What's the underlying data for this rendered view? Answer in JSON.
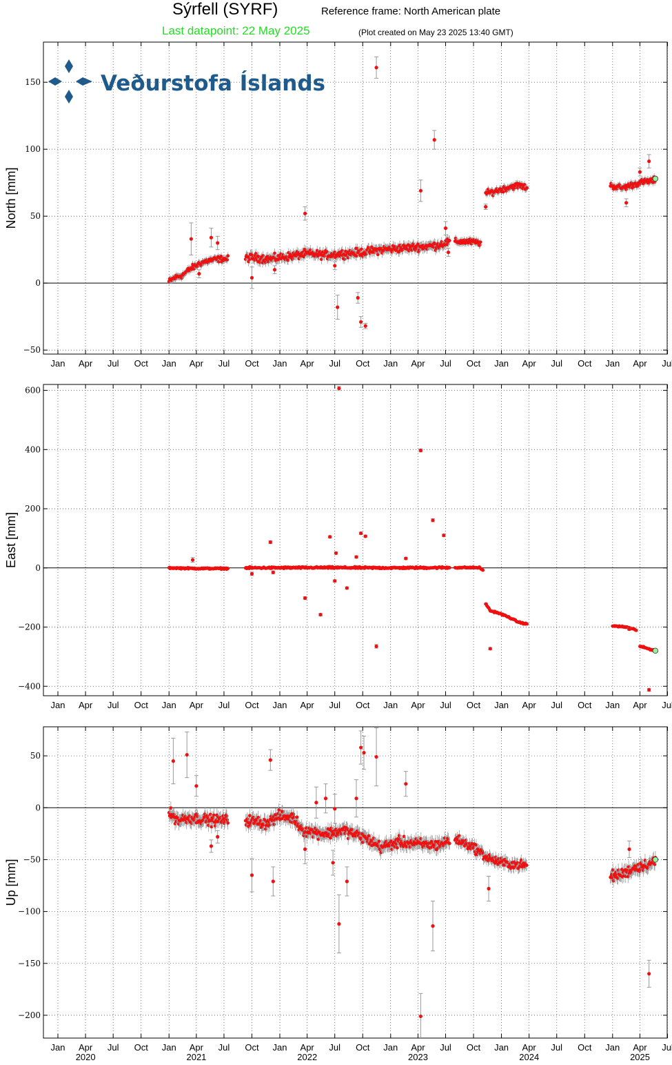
{
  "header": {
    "title": "Sýrfell (SYRF)",
    "reference_frame": "Reference frame: North American plate",
    "last_datapoint": "Last datapoint: 22 May 2025",
    "plot_created": "(Plot created on May 23 2025 13:40 GMT)"
  },
  "logo": {
    "text": "Veðurstofa Íslands",
    "color": "#1f5a8c"
  },
  "colors": {
    "point": "#ee1111",
    "last_point": "#99ee99",
    "errorbar": "#999999",
    "grid": "#555555"
  },
  "x_axis": {
    "month_labels": [
      "Jan",
      "Apr",
      "Jul",
      "Oct",
      "Jan",
      "Apr",
      "Jul",
      "Oct",
      "Jan",
      "Apr",
      "Jul",
      "Oct",
      "Jan",
      "Apr",
      "Jul",
      "Oct",
      "Jan",
      "Apr",
      "Jul",
      "Oct",
      "Jan",
      "Apr",
      "Jul"
    ],
    "year_labels": [
      "2020",
      "2021",
      "2022",
      "2023",
      "2024",
      "2025"
    ]
  },
  "chart_data": [
    {
      "type": "scatter",
      "ylabel": "North [mm]",
      "ylim": [
        -53,
        180
      ],
      "yticks": [
        -50,
        0,
        50,
        100,
        150
      ],
      "grid": true,
      "last_point": {
        "x": "2025-05-22",
        "y": 78
      },
      "segments": [
        {
          "x": [
            "2021-01-01",
            "2021-01-20",
            "2021-02-15",
            "2021-03-15",
            "2021-04-15",
            "2021-05-15",
            "2021-06-15",
            "2021-07-15"
          ],
          "y": [
            1,
            4,
            6,
            11,
            15,
            17,
            18,
            18
          ],
          "noise": 3
        },
        {
          "x": [
            "2021-09-10",
            "2021-10-15",
            "2021-12-01",
            "2022-02-01",
            "2022-04-01",
            "2022-06-01",
            "2022-08-01",
            "2022-10-01",
            "2022-12-01",
            "2023-02-01",
            "2023-04-01",
            "2023-06-01",
            "2023-07-15"
          ],
          "y": [
            19,
            19,
            18,
            20,
            22,
            21,
            22,
            23,
            25,
            26,
            27,
            28,
            31
          ],
          "noise": 4
        },
        {
          "x": [
            "2023-08-01",
            "2023-09-15",
            "2023-10-25"
          ],
          "y": [
            31,
            31,
            30
          ],
          "noise": 3
        },
        {
          "x": [
            "2023-11-10",
            "2023-12-01",
            "2024-01-01",
            "2024-02-01",
            "2024-03-01",
            "2024-03-25"
          ],
          "y": [
            67,
            68,
            70,
            72,
            73,
            71
          ],
          "noise": 3
        },
        {
          "x": [
            "2024-12-25",
            "2025-02-01",
            "2025-03-01",
            "2025-04-01",
            "2025-05-22"
          ],
          "y": [
            73,
            71,
            73,
            75,
            77
          ],
          "noise": 3
        }
      ],
      "outliers": [
        {
          "x": "2021-03-15",
          "y": 33,
          "err": 12
        },
        {
          "x": "2021-04-10",
          "y": 7,
          "err": 3
        },
        {
          "x": "2021-05-20",
          "y": 34,
          "err": 7
        },
        {
          "x": "2021-06-10",
          "y": 30,
          "err": 5
        },
        {
          "x": "2021-10-01",
          "y": 4,
          "err": 8
        },
        {
          "x": "2021-12-15",
          "y": 10,
          "err": 3
        },
        {
          "x": "2022-03-25",
          "y": 52,
          "err": 5
        },
        {
          "x": "2022-07-01",
          "y": 13,
          "err": 3
        },
        {
          "x": "2022-07-10",
          "y": -18,
          "err": 9
        },
        {
          "x": "2022-09-15",
          "y": -11,
          "err": 4
        },
        {
          "x": "2022-09-25",
          "y": -29,
          "err": 4
        },
        {
          "x": "2022-10-10",
          "y": -32,
          "err": 2
        },
        {
          "x": "2022-11-15",
          "y": 161,
          "err": 8
        },
        {
          "x": "2023-04-10",
          "y": 69,
          "err": 8
        },
        {
          "x": "2023-05-25",
          "y": 107,
          "err": 7
        },
        {
          "x": "2023-07-01",
          "y": 41,
          "err": 5
        },
        {
          "x": "2023-07-10",
          "y": 23,
          "err": 3
        },
        {
          "x": "2023-11-10",
          "y": 57,
          "err": 2
        },
        {
          "x": "2025-02-15",
          "y": 60,
          "err": 3
        },
        {
          "x": "2025-04-01",
          "y": 83,
          "err": 3
        },
        {
          "x": "2025-05-01",
          "y": 91,
          "err": 5
        }
      ]
    },
    {
      "type": "scatter",
      "ylabel": "East [mm]",
      "ylim": [
        -432,
        620
      ],
      "yticks": [
        -400,
        -200,
        0,
        200,
        400,
        600
      ],
      "grid": true,
      "last_point": {
        "x": "2025-05-22",
        "y": -280
      },
      "segments": [
        {
          "x": [
            "2021-01-01",
            "2021-04-01",
            "2021-07-15"
          ],
          "y": [
            0,
            -2,
            -2
          ],
          "noise": 3
        },
        {
          "x": [
            "2021-09-10",
            "2022-06-01",
            "2023-01-01",
            "2023-07-15"
          ],
          "y": [
            0,
            1,
            0,
            1
          ],
          "noise": 4
        },
        {
          "x": [
            "2023-08-01",
            "2023-10-20",
            "2023-11-01"
          ],
          "y": [
            1,
            1,
            -8
          ],
          "noise": 3
        },
        {
          "x": [
            "2023-11-10",
            "2023-11-25",
            "2023-12-15",
            "2024-01-10",
            "2024-02-01",
            "2024-02-25",
            "2024-03-25"
          ],
          "y": [
            -120,
            -145,
            -150,
            -160,
            -170,
            -183,
            -190
          ],
          "noise": 3
        },
        {
          "x": [
            "2025-01-01",
            "2025-02-15",
            "2025-03-20"
          ],
          "y": [
            -196,
            -200,
            -210
          ],
          "noise": 3
        },
        {
          "x": [
            "2025-04-01",
            "2025-05-22"
          ],
          "y": [
            -265,
            -280
          ],
          "noise": 3
        }
      ],
      "outliers": [
        {
          "x": "2021-03-20",
          "y": 27,
          "err": 8
        },
        {
          "x": "2021-10-01",
          "y": -20,
          "err": 6
        },
        {
          "x": "2021-12-01",
          "y": 87,
          "err": 5
        },
        {
          "x": "2021-12-10",
          "y": -15,
          "err": 5
        },
        {
          "x": "2022-03-25",
          "y": -102,
          "err": 5
        },
        {
          "x": "2022-05-15",
          "y": -158,
          "err": 4
        },
        {
          "x": "2022-06-15",
          "y": 105,
          "err": 4
        },
        {
          "x": "2022-07-01",
          "y": -44,
          "err": 4
        },
        {
          "x": "2022-07-05",
          "y": 50,
          "err": 4
        },
        {
          "x": "2022-07-15",
          "y": 607,
          "err": 6
        },
        {
          "x": "2022-08-10",
          "y": -68,
          "err": 4
        },
        {
          "x": "2022-09-10",
          "y": 37,
          "err": 4
        },
        {
          "x": "2022-09-25",
          "y": 117,
          "err": 4
        },
        {
          "x": "2022-10-10",
          "y": 107,
          "err": 4
        },
        {
          "x": "2022-11-15",
          "y": -265,
          "err": 6
        },
        {
          "x": "2023-02-20",
          "y": 32,
          "err": 4
        },
        {
          "x": "2023-04-10",
          "y": 397,
          "err": 5
        },
        {
          "x": "2023-05-20",
          "y": 161,
          "err": 5
        },
        {
          "x": "2023-06-25",
          "y": 110,
          "err": 4
        },
        {
          "x": "2023-11-25",
          "y": -273,
          "err": 4
        },
        {
          "x": "2025-02-25",
          "y": -207,
          "err": 4
        },
        {
          "x": "2025-05-01",
          "y": -412,
          "err": 5
        }
      ]
    },
    {
      "type": "scatter",
      "ylabel": "Up [mm]",
      "ylim": [
        -222,
        78
      ],
      "yticks": [
        -200,
        -150,
        -100,
        -50,
        0,
        50
      ],
      "grid": true,
      "last_point": {
        "x": "2025-05-22",
        "y": -50
      },
      "segments": [
        {
          "x": [
            "2021-01-01",
            "2021-02-01",
            "2021-03-01",
            "2021-04-01",
            "2021-05-15",
            "2021-07-15"
          ],
          "y": [
            -5,
            -12,
            -10,
            -10,
            -12,
            -12
          ],
          "noise": 7
        },
        {
          "x": [
            "2021-09-10",
            "2021-11-15",
            "2022-01-01",
            "2022-02-15",
            "2022-03-20",
            "2022-06-01",
            "2022-08-01",
            "2022-10-01",
            "2022-12-01",
            "2023-02-01",
            "2023-04-01",
            "2023-06-01",
            "2023-07-15"
          ],
          "y": [
            -12,
            -15,
            -8,
            -10,
            -22,
            -25,
            -22,
            -28,
            -38,
            -33,
            -35,
            -36,
            -32
          ],
          "noise": 7
        },
        {
          "x": [
            "2023-08-01",
            "2023-10-01",
            "2023-11-15",
            "2024-01-01",
            "2024-03-25"
          ],
          "y": [
            -30,
            -38,
            -48,
            -53,
            -56
          ],
          "noise": 6
        },
        {
          "x": [
            "2024-12-25",
            "2025-02-01",
            "2025-03-15",
            "2025-05-22"
          ],
          "y": [
            -66,
            -64,
            -58,
            -52
          ],
          "noise": 7
        }
      ],
      "outliers": [
        {
          "x": "2021-01-15",
          "y": 45,
          "err": 22
        },
        {
          "x": "2021-03-01",
          "y": 51,
          "err": 22
        },
        {
          "x": "2021-04-01",
          "y": 21,
          "err": 10
        },
        {
          "x": "2021-05-20",
          "y": -37,
          "err": 6
        },
        {
          "x": "2021-06-10",
          "y": -28,
          "err": 6
        },
        {
          "x": "2021-10-01",
          "y": -65,
          "err": 16
        },
        {
          "x": "2021-12-01",
          "y": 46,
          "err": 10
        },
        {
          "x": "2021-12-10",
          "y": -71,
          "err": 14
        },
        {
          "x": "2022-03-25",
          "y": -40,
          "err": 14
        },
        {
          "x": "2022-05-01",
          "y": 5,
          "err": 15
        },
        {
          "x": "2022-06-01",
          "y": 9,
          "err": 14
        },
        {
          "x": "2022-06-25",
          "y": -53,
          "err": 12
        },
        {
          "x": "2022-07-01",
          "y": -1,
          "err": 14
        },
        {
          "x": "2022-07-15",
          "y": -112,
          "err": 28
        },
        {
          "x": "2022-08-10",
          "y": -71,
          "err": 14
        },
        {
          "x": "2022-09-10",
          "y": 9,
          "err": 18
        },
        {
          "x": "2022-09-25",
          "y": 58,
          "err": 16
        },
        {
          "x": "2022-10-05",
          "y": 53,
          "err": 16
        },
        {
          "x": "2022-11-15",
          "y": 49,
          "err": 28
        },
        {
          "x": "2023-02-20",
          "y": 23,
          "err": 12
        },
        {
          "x": "2023-04-10",
          "y": -201,
          "err": 22
        },
        {
          "x": "2023-05-20",
          "y": -114,
          "err": 24
        },
        {
          "x": "2023-11-20",
          "y": -78,
          "err": 12
        },
        {
          "x": "2025-02-25",
          "y": -40,
          "err": 8
        },
        {
          "x": "2025-05-01",
          "y": -160,
          "err": 13
        }
      ]
    }
  ]
}
